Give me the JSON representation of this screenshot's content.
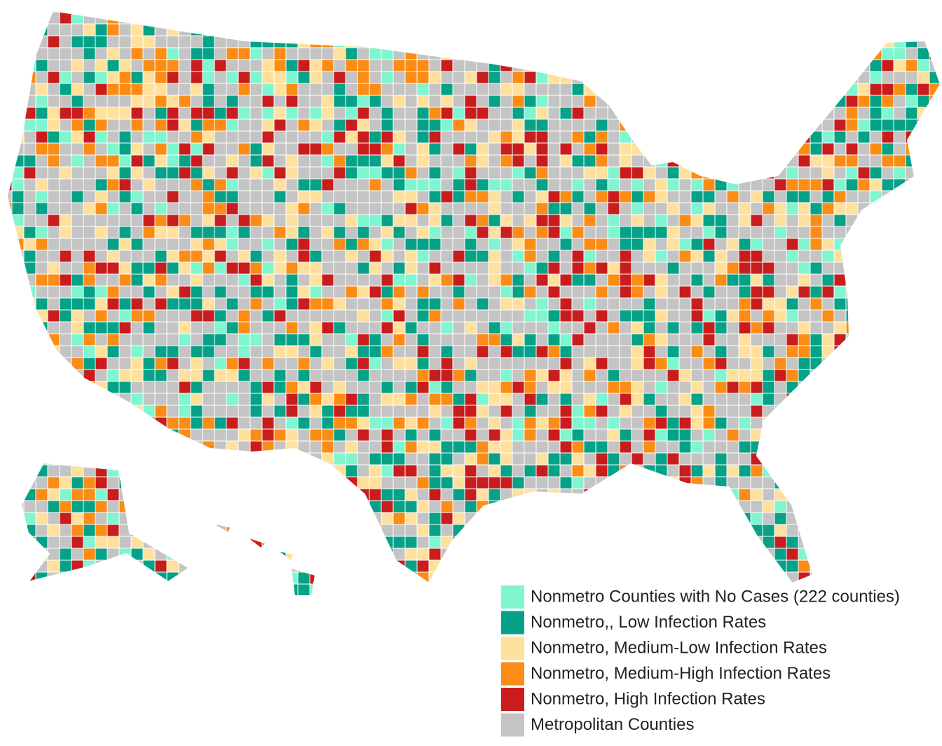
{
  "legend": {
    "items": [
      {
        "label": "Nonmetro Counties with No Cases (222 counties)",
        "color": "#7ff5d0"
      },
      {
        "label": "Nonmetro,, Low Infection Rates",
        "color": "#06a287"
      },
      {
        "label": "Nonmetro, Medium-Low Infection Rates",
        "color": "#ffe09c"
      },
      {
        "label": "Nonmetro, Medium-High Infection Rates",
        "color": "#fb8c15"
      },
      {
        "label": "Nonmetro, High Infection Rates",
        "color": "#c91d1d"
      },
      {
        "label": "Metropolitan Counties",
        "color": "#c4c4c4"
      }
    ]
  }
}
